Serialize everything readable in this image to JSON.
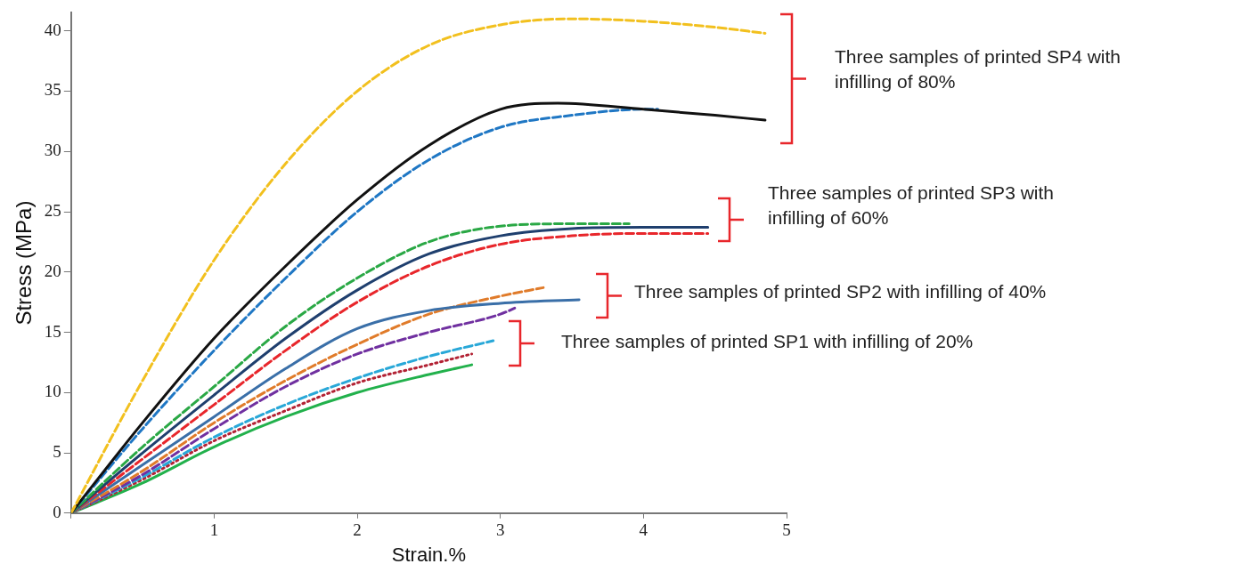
{
  "chart_data": {
    "type": "line",
    "xlabel": "Strain.%",
    "ylabel": "Stress (MPa)",
    "xlim": [
      0,
      5
    ],
    "ylim": [
      0,
      41.5
    ],
    "xticks": [
      {
        "value": 0,
        "label": null
      },
      1,
      2,
      3,
      4,
      5
    ],
    "yticks": [
      0,
      5,
      10,
      15,
      20,
      25,
      30,
      35,
      40
    ],
    "grid": false,
    "legend": false,
    "marker": "none",
    "annotations": [
      "Three samples of printed SP4 with infilling of 80%",
      "Three samples of printed SP3 with infilling of 60%",
      "Three samples of printed SP2 with infilling of 40%",
      "Three samples of printed SP1 with infilling of 20%"
    ],
    "series": [
      {
        "color": "#f2c01e",
        "line_style": "dashed",
        "x": [
          0,
          0.5,
          1,
          1.5,
          2,
          2.5,
          3,
          3.5,
          4,
          4.5,
          4.85
        ],
        "values": [
          0,
          11,
          21,
          29,
          35,
          38.8,
          40.5,
          41,
          40.8,
          40.3,
          39.8
        ]
      },
      {
        "color": "#111111",
        "line_style": "solid",
        "x": [
          0,
          0.5,
          1,
          1.5,
          2,
          2.5,
          3,
          3.4,
          4,
          4.5,
          4.85
        ],
        "values": [
          0,
          7.5,
          14.5,
          20.5,
          26,
          30.5,
          33.5,
          34,
          33.5,
          33,
          32.6
        ]
      },
      {
        "color": "#1f77c4",
        "line_style": "dashed",
        "x": [
          0,
          0.5,
          1,
          1.5,
          2,
          2.5,
          3,
          3.5,
          4,
          4.1
        ],
        "values": [
          0,
          7,
          13.5,
          19.5,
          25,
          29.3,
          32,
          33,
          33.5,
          33.5
        ]
      },
      {
        "color": "#2aa845",
        "line_style": "dashed",
        "x": [
          0,
          0.5,
          1,
          1.5,
          2,
          2.5,
          3,
          3.5,
          3.9
        ],
        "values": [
          0,
          5.5,
          10.5,
          15.5,
          19.5,
          22.5,
          23.8,
          24,
          24
        ]
      },
      {
        "color": "#1f3f6e",
        "line_style": "solid",
        "x": [
          0,
          0.5,
          1,
          1.5,
          2,
          2.5,
          3,
          3.5,
          4,
          4.45
        ],
        "values": [
          0,
          5,
          9.8,
          14.5,
          18.5,
          21.5,
          23,
          23.6,
          23.7,
          23.7
        ]
      },
      {
        "color": "#e8262b",
        "line_style": "dashed",
        "x": [
          0,
          0.5,
          1,
          1.5,
          2,
          2.5,
          3,
          3.5,
          4,
          4.45
        ],
        "values": [
          0,
          4.5,
          9,
          13.5,
          17.5,
          20.5,
          22.3,
          23,
          23.2,
          23.2
        ]
      },
      {
        "color": "#3a6fa8",
        "line_style": "solid",
        "x": [
          0,
          0.5,
          1,
          1.5,
          2,
          2.5,
          3,
          3.55
        ],
        "values": [
          0,
          4,
          8,
          12,
          15.3,
          16.8,
          17.4,
          17.7
        ]
      },
      {
        "color": "#e07b2a",
        "line_style": "dashed",
        "x": [
          0,
          0.5,
          1,
          1.5,
          2,
          2.5,
          3,
          3.3
        ],
        "values": [
          0,
          3.5,
          7.5,
          11,
          14,
          16.5,
          18,
          18.7
        ]
      },
      {
        "color": "#7030a0",
        "line_style": "dashed",
        "x": [
          0,
          0.5,
          1,
          1.5,
          2,
          2.5,
          3,
          3.1
        ],
        "values": [
          0,
          3.2,
          7,
          10.5,
          13.2,
          15,
          16.5,
          17
        ]
      },
      {
        "color": "#29a8d8",
        "line_style": "dashed",
        "x": [
          0,
          0.5,
          1,
          1.5,
          2,
          2.5,
          2.95
        ],
        "values": [
          0,
          3,
          6.3,
          9,
          11.2,
          13,
          14.3
        ]
      },
      {
        "color": "#b22234",
        "line_style": "dotted",
        "x": [
          0,
          0.5,
          1,
          1.5,
          2,
          2.5,
          2.8
        ],
        "values": [
          0,
          2.8,
          6,
          8.5,
          10.8,
          12.3,
          13.2
        ]
      },
      {
        "color": "#22b14c",
        "line_style": "solid",
        "x": [
          0,
          0.5,
          1,
          1.5,
          2,
          2.5,
          2.8
        ],
        "values": [
          0,
          2.5,
          5.5,
          8,
          10,
          11.5,
          12.3
        ]
      }
    ]
  }
}
